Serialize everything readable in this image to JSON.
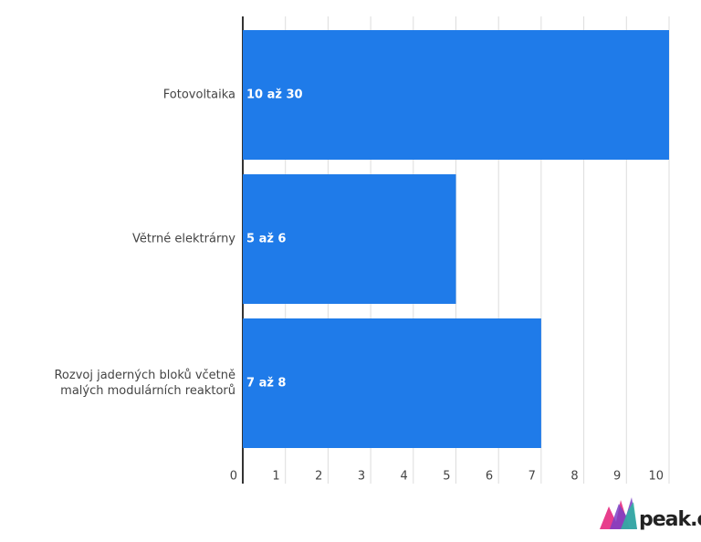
{
  "chart_data": {
    "type": "hbar",
    "categories": [
      "Fotovoltaika",
      "Větrné elektrárny",
      "Rozvoj jaderných bloků včetně malých modulárních reaktorů"
    ],
    "values": [
      10,
      5,
      7
    ],
    "value_labels": [
      "10 až 30",
      "5 až 6",
      "7 až 8"
    ],
    "color": "#1f7be9",
    "xlim": [
      0,
      10
    ],
    "xticks": [
      0,
      1,
      2,
      3,
      4,
      5,
      6,
      7,
      8,
      9,
      10
    ],
    "grid": true
  },
  "logo": "peak.cz"
}
